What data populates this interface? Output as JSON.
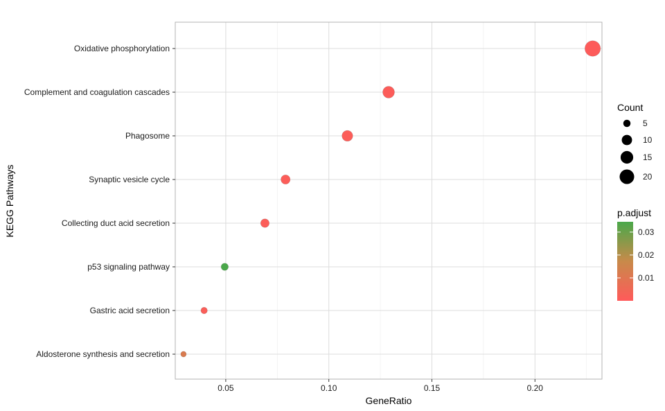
{
  "chart_data": {
    "type": "scatter",
    "title": "",
    "xlabel": "GeneRatio",
    "ylabel": "KEGG Pathways",
    "xlim": [
      0.0255,
      0.2325
    ],
    "x_ticks": [
      0.05,
      0.1,
      0.15,
      0.2
    ],
    "x_tick_labels": [
      "0.05",
      "0.10",
      "0.15",
      "0.20"
    ],
    "grid": true,
    "legend_position": "right",
    "categories": [
      "Oxidative phosphorylation",
      "Complement and coagulation cascades",
      "Phagosome",
      "Synaptic vesicle cycle",
      "Collecting duct acid secretion",
      "p53 signaling pathway",
      "Gastric acid secretion",
      "Aldosterone synthesis and secretion"
    ],
    "points": [
      {
        "pathway": "Oxidative phosphorylation",
        "gene_ratio": 0.228,
        "count": 23,
        "p_adjust": 0.0005
      },
      {
        "pathway": "Complement and coagulation cascades",
        "gene_ratio": 0.129,
        "count": 13,
        "p_adjust": 0.0008
      },
      {
        "pathway": "Phagosome",
        "gene_ratio": 0.109,
        "count": 11,
        "p_adjust": 0.001
      },
      {
        "pathway": "Synaptic vesicle cycle",
        "gene_ratio": 0.079,
        "count": 8,
        "p_adjust": 0.001
      },
      {
        "pathway": "Collecting duct acid secretion",
        "gene_ratio": 0.069,
        "count": 7,
        "p_adjust": 0.001
      },
      {
        "pathway": "p53 signaling pathway",
        "gene_ratio": 0.0495,
        "count": 5,
        "p_adjust": 0.036
      },
      {
        "pathway": "Gastric acid secretion",
        "gene_ratio": 0.0395,
        "count": 4,
        "p_adjust": 0.0015
      },
      {
        "pathway": "Aldosterone synthesis and secretion",
        "gene_ratio": 0.0295,
        "count": 3,
        "p_adjust": 0.012
      }
    ],
    "size_legend": {
      "title": "Count",
      "values": [
        5,
        10,
        15,
        20
      ],
      "labels": [
        "5",
        "10",
        "15",
        "20"
      ]
    },
    "color_legend": {
      "title": "p.adjust",
      "range": [
        0.0,
        0.0345
      ],
      "ticks": [
        0.01,
        0.02,
        0.03
      ],
      "tick_labels": [
        "0.01",
        "0.02",
        "0.03"
      ],
      "low_color": "#ff5a5a",
      "high_color": "#4aa84a"
    }
  }
}
